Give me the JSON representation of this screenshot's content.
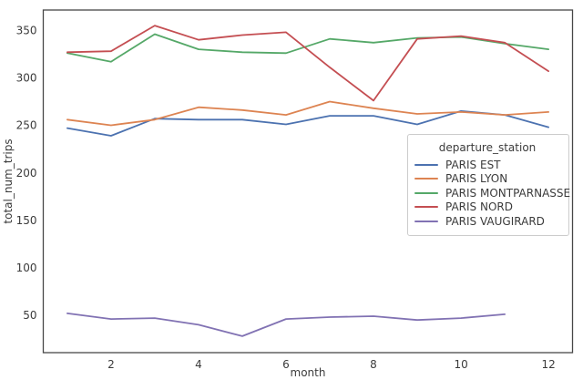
{
  "figure": {
    "background": "#ffffff",
    "spine_color": "#474747",
    "tick_label_color": "#3b3b3b"
  },
  "chart_data": {
    "type": "line",
    "title": "",
    "xlabel": "month",
    "ylabel": "total_num_trips",
    "x": [
      1,
      2,
      3,
      4,
      5,
      6,
      7,
      8,
      9,
      10,
      11,
      12
    ],
    "xticks": [
      2,
      4,
      6,
      8,
      10,
      12
    ],
    "yticks": [
      50,
      100,
      150,
      200,
      250,
      300,
      350
    ],
    "xlim": [
      0.45,
      12.55
    ],
    "ylim": [
      10.6,
      371.4
    ],
    "grid": false,
    "legend": {
      "title": "departure_station",
      "position": "center-right"
    },
    "series": [
      {
        "name": "PARIS EST",
        "color": "#4C72B0",
        "values": [
          247,
          239,
          257,
          256,
          256,
          251,
          260,
          260,
          251,
          265,
          261,
          248
        ]
      },
      {
        "name": "PARIS LYON",
        "color": "#DD8452",
        "values": [
          256,
          250,
          256,
          269,
          266,
          261,
          275,
          268,
          262,
          264,
          261,
          264
        ]
      },
      {
        "name": "PARIS MONTPARNASSE",
        "color": "#55A868",
        "values": [
          326,
          317,
          346,
          330,
          327,
          326,
          341,
          337,
          342,
          343,
          336,
          330
        ]
      },
      {
        "name": "PARIS NORD",
        "color": "#C44E52",
        "values": [
          327,
          328,
          355,
          340,
          345,
          348,
          311,
          276,
          341,
          344,
          337,
          307
        ]
      },
      {
        "name": "PARIS VAUGIRARD",
        "color": "#8172B3",
        "values": [
          52,
          46,
          47,
          40,
          28,
          46,
          48,
          49,
          45,
          47,
          51,
          null
        ]
      }
    ]
  }
}
